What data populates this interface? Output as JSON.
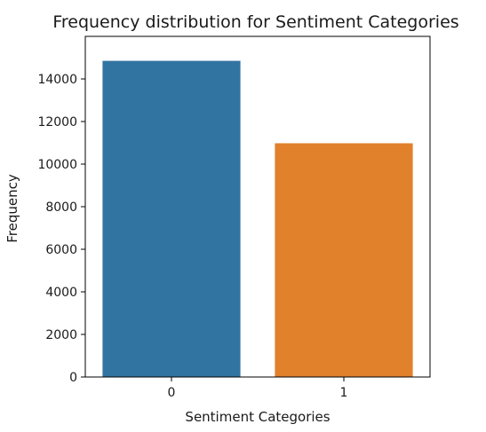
{
  "chart_data": {
    "type": "bar",
    "title": "Frequency distribution for Sentiment Categories",
    "xlabel": "Sentiment Categories",
    "ylabel": "Frequency",
    "categories": [
      "0",
      "1"
    ],
    "values": [
      14850,
      10980
    ],
    "colors": [
      "#3274a1",
      "#e1812c"
    ],
    "ylim": [
      0,
      16000
    ],
    "yticks": [
      0,
      2000,
      4000,
      6000,
      8000,
      10000,
      12000,
      14000
    ],
    "grid": false,
    "legend": "none"
  }
}
